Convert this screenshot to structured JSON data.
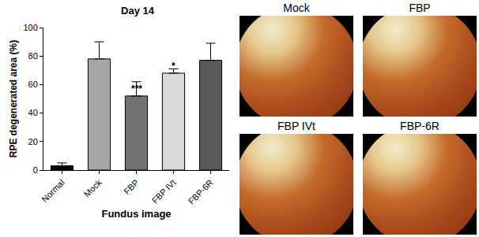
{
  "chart_data": {
    "type": "bar",
    "title": "Day 14",
    "categories": [
      "Normal",
      "Mock",
      "FBP",
      "FBP IVt",
      "FBP-6R"
    ],
    "values": [
      3,
      78,
      52,
      68,
      77
    ],
    "errors": [
      2,
      12,
      10,
      3,
      12
    ],
    "colors": [
      "#000000",
      "#a6a6a6",
      "#737373",
      "#d9d9d9",
      "#595959"
    ],
    "x_label": "Fundus image",
    "y_label": "RPE degenerated area (%)",
    "ylim": [
      0,
      100
    ],
    "yticks": [
      0,
      20,
      40,
      60,
      80,
      100
    ],
    "grid": false,
    "annotations": [
      {
        "category": "FBP",
        "text": "***"
      },
      {
        "category": "FBP IVt",
        "text": "*"
      }
    ]
  },
  "fundus_panels": {
    "labels": [
      "Mock",
      "FBP",
      "FBP IVt",
      "FBP-6R"
    ]
  }
}
